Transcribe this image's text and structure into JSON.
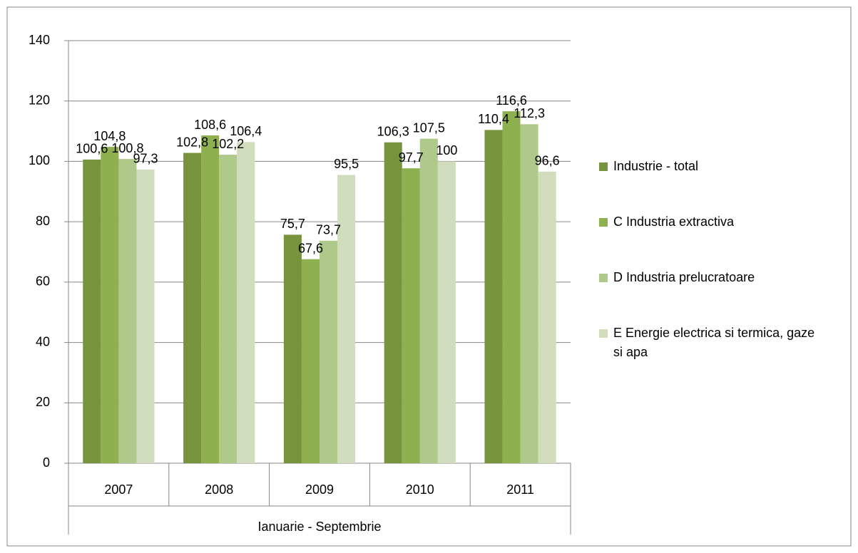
{
  "chart_data": {
    "type": "bar",
    "categories": [
      "2007",
      "2008",
      "2009",
      "2010",
      "2011"
    ],
    "x_group_label": "Ianuarie - Septembrie",
    "series": [
      {
        "name": "Industrie - total",
        "color": "#77933c",
        "values": [
          100.6,
          102.8,
          75.7,
          106.3,
          110.4
        ],
        "value_labels": [
          "100,6",
          "102,8",
          "75,7",
          "106,3",
          "110,4"
        ]
      },
      {
        "name": "C Industria extractiva",
        "color": "#8fb04e",
        "values": [
          104.8,
          108.6,
          67.6,
          97.7,
          116.6
        ],
        "value_labels": [
          "104,8",
          "108,6",
          "67,6",
          "97,7",
          "116,6"
        ]
      },
      {
        "name": "D Industria prelucratoare",
        "color": "#afc98a",
        "values": [
          100.8,
          102.2,
          73.7,
          107.5,
          112.3
        ],
        "value_labels": [
          "100,8",
          "102,2",
          "73,7",
          "107,5",
          "112,3"
        ]
      },
      {
        "name": "E Energie electrica si termica, gaze si apa",
        "color": "#d0dcbc",
        "values": [
          97.3,
          106.4,
          95.5,
          100,
          96.6
        ],
        "value_labels": [
          "97,3",
          "106,4",
          "95,5",
          "100",
          "96,6"
        ]
      }
    ],
    "ylim": [
      0,
      140
    ],
    "yticks": [
      0,
      20,
      40,
      60,
      80,
      100,
      120,
      140
    ],
    "grid": true,
    "legend": "right"
  }
}
